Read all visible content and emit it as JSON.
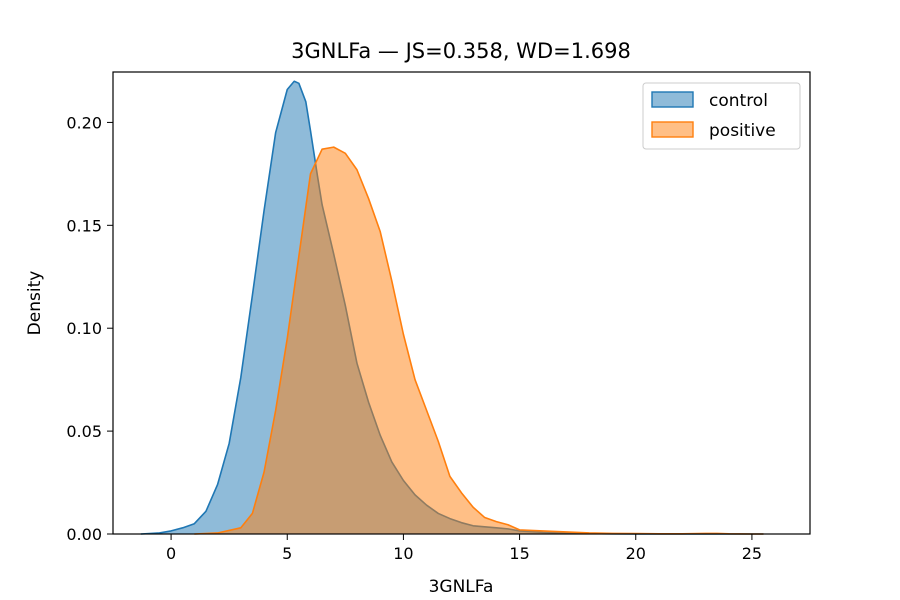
{
  "chart_data": {
    "type": "area",
    "title": "3GNLFa — JS=0.358, WD=1.698",
    "xlabel": "3GNLFa",
    "ylabel": "Density",
    "xlim": [
      -2.5,
      27.5
    ],
    "ylim": [
      0,
      0.2245
    ],
    "xticks": [
      0,
      5,
      10,
      15,
      20,
      25
    ],
    "xtick_labels": [
      "0",
      "5",
      "10",
      "15",
      "20",
      "25"
    ],
    "yticks": [
      0,
      0.05,
      0.1,
      0.15,
      0.2
    ],
    "ytick_labels": [
      "0.00",
      "0.05",
      "0.10",
      "0.15",
      "0.20"
    ],
    "grid": false,
    "legend_position": "top-right",
    "series": [
      {
        "name": "control",
        "line_color": "#1f77b4",
        "fill_color": "#1f77b4",
        "fill_opacity": 0.5,
        "x": [
          -1.3,
          -0.5,
          0,
          0.5,
          1,
          1.5,
          2,
          2.5,
          3,
          3.5,
          4,
          4.5,
          5,
          5.3,
          5.5,
          5.8,
          6,
          6.3,
          6.5,
          7,
          7.5,
          8,
          8.5,
          9,
          9.5,
          10,
          10.5,
          11,
          11.5,
          12,
          12.5,
          13,
          13.5,
          14,
          14.5,
          15,
          16,
          17,
          18,
          19,
          20,
          21,
          22,
          23,
          24,
          25,
          25.5
        ],
        "y": [
          0,
          0.0005,
          0.0015,
          0.003,
          0.005,
          0.011,
          0.024,
          0.044,
          0.076,
          0.116,
          0.157,
          0.195,
          0.216,
          0.22,
          0.219,
          0.21,
          0.196,
          0.174,
          0.16,
          0.136,
          0.111,
          0.083,
          0.064,
          0.048,
          0.035,
          0.026,
          0.019,
          0.014,
          0.01,
          0.0075,
          0.0055,
          0.004,
          0.0035,
          0.003,
          0.0025,
          0.0015,
          0.0008,
          0.0004,
          0.0002,
          0.0001,
          0,
          0,
          0,
          0,
          0,
          0,
          0
        ]
      },
      {
        "name": "positive",
        "line_color": "#ff7f0e",
        "fill_color": "#ff7f0e",
        "fill_opacity": 0.5,
        "x": [
          1,
          2,
          3,
          3.5,
          4,
          4.5,
          5,
          5.5,
          6,
          6.5,
          7,
          7.5,
          8,
          8.5,
          9,
          9.5,
          10,
          10.5,
          11,
          11.5,
          12,
          12.5,
          13,
          13.5,
          14,
          14.5,
          15,
          16,
          17,
          18,
          19,
          20,
          21,
          22,
          23,
          23.5,
          24,
          25,
          25.5
        ],
        "y": [
          0,
          0.0005,
          0.003,
          0.01,
          0.03,
          0.06,
          0.095,
          0.135,
          0.175,
          0.187,
          0.188,
          0.185,
          0.177,
          0.163,
          0.147,
          0.123,
          0.097,
          0.075,
          0.06,
          0.045,
          0.028,
          0.02,
          0.013,
          0.008,
          0.006,
          0.0045,
          0.002,
          0.0015,
          0.001,
          0.0005,
          0.0003,
          0.0002,
          0.0001,
          0.0001,
          0.0003,
          0.0003,
          0.0001,
          0,
          0
        ]
      }
    ]
  }
}
